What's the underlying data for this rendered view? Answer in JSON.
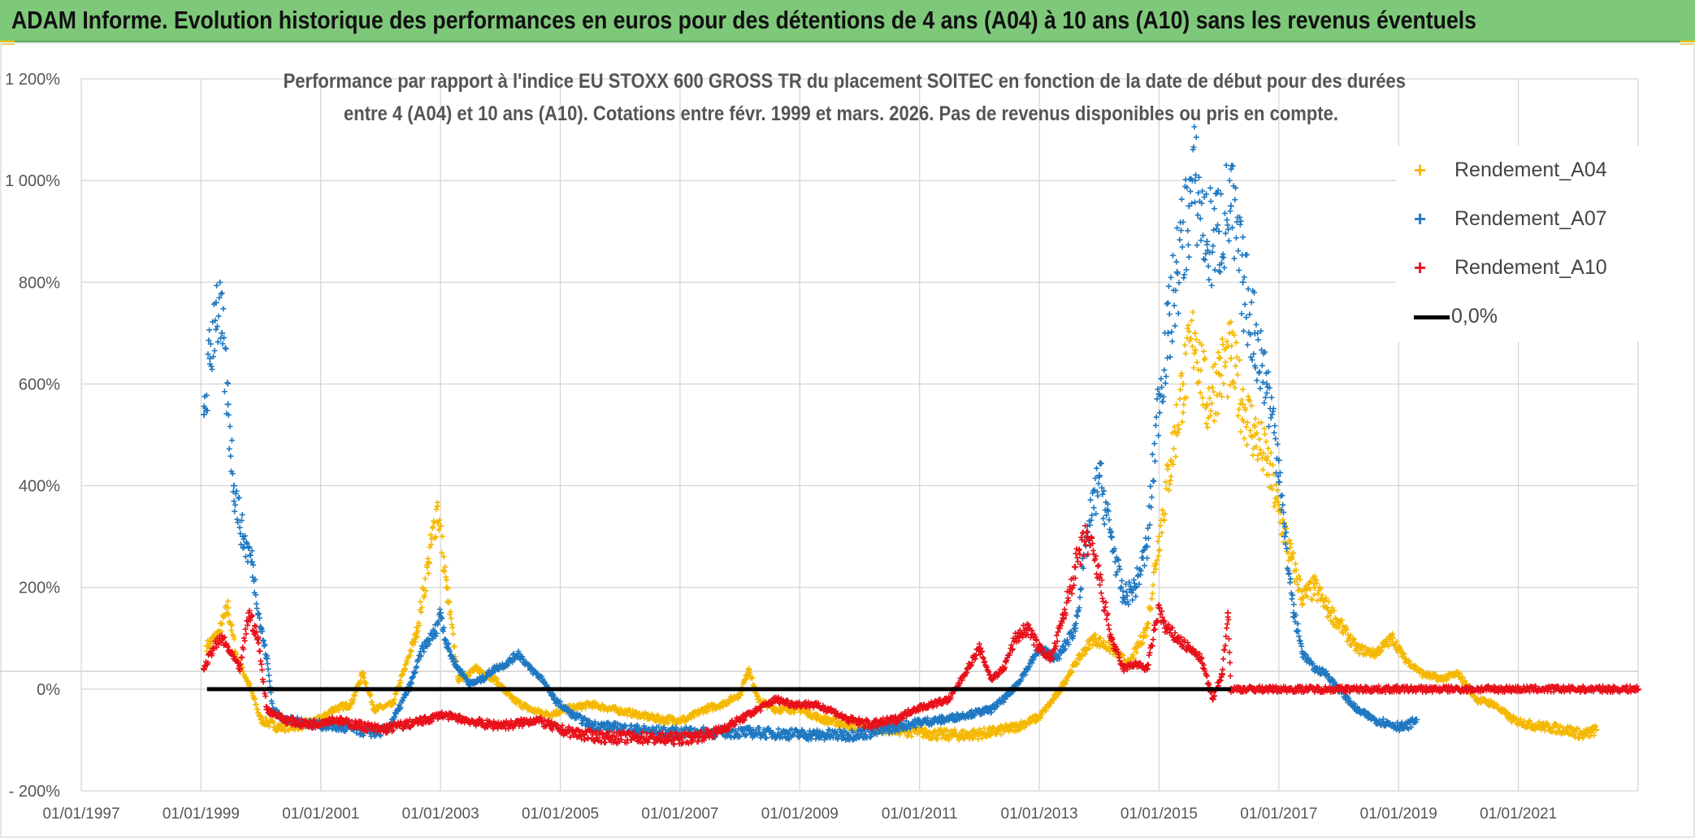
{
  "banner": {
    "title": "ADAM Informe. Evolution historique des performances en euros pour des détentions de 4 ans (A04) à 10 ans (A10) sans les revenus éventuels",
    "bg_color": "#7ec87a"
  },
  "chart_data": {
    "type": "scatter",
    "title_line1": "Performance par rapport à l'indice EU STOXX 600 GROSS TR  du placement SOITEC en fonction de la date de début pour des durées",
    "title_line2": "entre 4 (A04) et 10 ans (A10). Cotations entre févr. 1999 et mars. 2026. Pas de revenus disponibles ou pris en compte.",
    "xlabel": "",
    "ylabel": "",
    "x_ticks": [
      "01/01/1997",
      "01/01/1999",
      "01/01/2001",
      "01/01/2003",
      "01/01/2005",
      "01/01/2007",
      "01/01/2009",
      "01/01/2011",
      "01/01/2013",
      "01/01/2015",
      "01/01/2017",
      "01/01/2019",
      "01/01/2021"
    ],
    "y_ticks": [
      "- 200%",
      "0%",
      "200%",
      "400%",
      "600%",
      "800%",
      "1 000%",
      "1 200%"
    ],
    "ylim": [
      -200,
      1200
    ],
    "xlim": [
      1997.0,
      2023.0
    ],
    "grid": true,
    "legend_position": "top-right",
    "series": [
      {
        "name": "Rendement_A04",
        "color": "#f5b800",
        "marker": "+",
        "points": [
          [
            1999.1,
            85
          ],
          [
            1999.3,
            110
          ],
          [
            1999.45,
            160
          ],
          [
            1999.6,
            60
          ],
          [
            1999.8,
            10
          ],
          [
            2000.0,
            -60
          ],
          [
            2000.3,
            -75
          ],
          [
            2000.7,
            -70
          ],
          [
            2001.0,
            -60
          ],
          [
            2001.2,
            -40
          ],
          [
            2001.5,
            -30
          ],
          [
            2001.7,
            30
          ],
          [
            2001.9,
            -40
          ],
          [
            2002.2,
            -30
          ],
          [
            2002.4,
            40
          ],
          [
            2002.6,
            110
          ],
          [
            2002.8,
            250
          ],
          [
            2002.95,
            360
          ],
          [
            2003.1,
            200
          ],
          [
            2003.3,
            20
          ],
          [
            2003.6,
            40
          ],
          [
            2003.9,
            20
          ],
          [
            2004.2,
            -20
          ],
          [
            2004.5,
            -40
          ],
          [
            2004.8,
            -50
          ],
          [
            2005.1,
            -40
          ],
          [
            2005.5,
            -30
          ],
          [
            2005.9,
            -40
          ],
          [
            2006.3,
            -50
          ],
          [
            2006.7,
            -60
          ],
          [
            2007.1,
            -60
          ],
          [
            2007.4,
            -40
          ],
          [
            2007.7,
            -30
          ],
          [
            2008.0,
            -10
          ],
          [
            2008.15,
            40
          ],
          [
            2008.3,
            -20
          ],
          [
            2008.6,
            -40
          ],
          [
            2009.0,
            -40
          ],
          [
            2009.4,
            -60
          ],
          [
            2009.8,
            -70
          ],
          [
            2010.2,
            -75
          ],
          [
            2010.6,
            -80
          ],
          [
            2011.0,
            -85
          ],
          [
            2011.4,
            -90
          ],
          [
            2011.8,
            -90
          ],
          [
            2012.2,
            -85
          ],
          [
            2012.6,
            -75
          ],
          [
            2013.0,
            -55
          ],
          [
            2013.3,
            -10
          ],
          [
            2013.6,
            50
          ],
          [
            2013.9,
            100
          ],
          [
            2014.2,
            80
          ],
          [
            2014.5,
            50
          ],
          [
            2014.8,
            120
          ],
          [
            2015.0,
            300
          ],
          [
            2015.2,
            450
          ],
          [
            2015.4,
            600
          ],
          [
            2015.6,
            700
          ],
          [
            2015.8,
            560
          ],
          [
            2016.0,
            620
          ],
          [
            2016.2,
            650
          ],
          [
            2016.4,
            560
          ],
          [
            2016.6,
            500
          ],
          [
            2016.8,
            450
          ],
          [
            2017.0,
            350
          ],
          [
            2017.2,
            260
          ],
          [
            2017.4,
            180
          ],
          [
            2017.6,
            200
          ],
          [
            2017.8,
            160
          ],
          [
            2018.0,
            130
          ],
          [
            2018.3,
            80
          ],
          [
            2018.6,
            70
          ],
          [
            2018.9,
            100
          ],
          [
            2019.1,
            60
          ],
          [
            2019.4,
            30
          ],
          [
            2019.7,
            20
          ],
          [
            2020.0,
            30
          ],
          [
            2020.3,
            -20
          ],
          [
            2020.6,
            -30
          ],
          [
            2020.9,
            -60
          ],
          [
            2021.2,
            -70
          ],
          [
            2021.5,
            -75
          ],
          [
            2021.8,
            -80
          ],
          [
            2022.1,
            -90
          ],
          [
            2022.3,
            -80
          ]
        ]
      },
      {
        "name": "Rendement_A07",
        "color": "#1f78c1",
        "marker": "+",
        "points": [
          [
            1999.05,
            540
          ],
          [
            1999.15,
            650
          ],
          [
            1999.25,
            760
          ],
          [
            1999.35,
            700
          ],
          [
            1999.45,
            560
          ],
          [
            1999.55,
            400
          ],
          [
            1999.7,
            300
          ],
          [
            1999.85,
            250
          ],
          [
            2000.0,
            120
          ],
          [
            2000.1,
            60
          ],
          [
            2000.2,
            -40
          ],
          [
            2000.4,
            -60
          ],
          [
            2000.7,
            -65
          ],
          [
            2001.0,
            -70
          ],
          [
            2001.3,
            -75
          ],
          [
            2001.6,
            -80
          ],
          [
            2001.9,
            -85
          ],
          [
            2002.1,
            -80
          ],
          [
            2002.3,
            -40
          ],
          [
            2002.5,
            10
          ],
          [
            2002.7,
            80
          ],
          [
            2002.9,
            110
          ],
          [
            2003.0,
            150
          ],
          [
            2003.1,
            90
          ],
          [
            2003.2,
            60
          ],
          [
            2003.3,
            40
          ],
          [
            2003.5,
            10
          ],
          [
            2003.7,
            20
          ],
          [
            2003.9,
            40
          ],
          [
            2004.1,
            50
          ],
          [
            2004.3,
            70
          ],
          [
            2004.5,
            40
          ],
          [
            2004.7,
            20
          ],
          [
            2004.9,
            -20
          ],
          [
            2005.2,
            -50
          ],
          [
            2005.5,
            -70
          ],
          [
            2005.9,
            -75
          ],
          [
            2006.3,
            -80
          ],
          [
            2006.8,
            -85
          ],
          [
            2007.3,
            -85
          ],
          [
            2007.8,
            -85
          ],
          [
            2008.2,
            -85
          ],
          [
            2008.8,
            -88
          ],
          [
            2009.3,
            -90
          ],
          [
            2009.8,
            -90
          ],
          [
            2010.2,
            -85
          ],
          [
            2010.6,
            -75
          ],
          [
            2011.0,
            -65
          ],
          [
            2011.4,
            -60
          ],
          [
            2011.8,
            -50
          ],
          [
            2012.2,
            -40
          ],
          [
            2012.5,
            -10
          ],
          [
            2012.8,
            40
          ],
          [
            2013.0,
            80
          ],
          [
            2013.3,
            60
          ],
          [
            2013.6,
            120
          ],
          [
            2013.8,
            300
          ],
          [
            2014.0,
            420
          ],
          [
            2014.2,
            300
          ],
          [
            2014.4,
            180
          ],
          [
            2014.6,
            200
          ],
          [
            2014.8,
            280
          ],
          [
            2015.0,
            580
          ],
          [
            2015.15,
            700
          ],
          [
            2015.3,
            820
          ],
          [
            2015.5,
            950
          ],
          [
            2015.6,
            1000
          ],
          [
            2015.8,
            880
          ],
          [
            2016.0,
            900
          ],
          [
            2016.2,
            950
          ],
          [
            2016.4,
            800
          ],
          [
            2016.6,
            700
          ],
          [
            2016.8,
            600
          ],
          [
            2017.0,
            450
          ],
          [
            2017.1,
            300
          ],
          [
            2017.25,
            150
          ],
          [
            2017.4,
            70
          ],
          [
            2017.6,
            40
          ],
          [
            2017.8,
            30
          ],
          [
            2018.0,
            0
          ],
          [
            2018.3,
            -40
          ],
          [
            2018.6,
            -60
          ],
          [
            2018.9,
            -70
          ],
          [
            2019.1,
            -75
          ],
          [
            2019.3,
            -60
          ]
        ]
      },
      {
        "name": "Rendement_A10",
        "color": "#e8101a",
        "marker": "+",
        "points": [
          [
            1999.05,
            40
          ],
          [
            1999.2,
            80
          ],
          [
            1999.35,
            100
          ],
          [
            1999.5,
            70
          ],
          [
            1999.65,
            40
          ],
          [
            1999.8,
            150
          ],
          [
            1999.95,
            100
          ],
          [
            2000.1,
            -40
          ],
          [
            2000.4,
            -60
          ],
          [
            2000.8,
            -70
          ],
          [
            2001.2,
            -60
          ],
          [
            2001.6,
            -70
          ],
          [
            2002.0,
            -80
          ],
          [
            2002.4,
            -70
          ],
          [
            2002.8,
            -60
          ],
          [
            2003.0,
            -50
          ],
          [
            2003.4,
            -60
          ],
          [
            2003.8,
            -70
          ],
          [
            2004.2,
            -70
          ],
          [
            2004.6,
            -60
          ],
          [
            2005.0,
            -80
          ],
          [
            2005.4,
            -90
          ],
          [
            2005.8,
            -95
          ],
          [
            2006.3,
            -95
          ],
          [
            2006.8,
            -98
          ],
          [
            2007.2,
            -95
          ],
          [
            2007.6,
            -85
          ],
          [
            2008.0,
            -60
          ],
          [
            2008.3,
            -40
          ],
          [
            2008.6,
            -20
          ],
          [
            2008.9,
            -30
          ],
          [
            2009.2,
            -30
          ],
          [
            2009.5,
            -40
          ],
          [
            2009.8,
            -60
          ],
          [
            2010.2,
            -70
          ],
          [
            2010.6,
            -60
          ],
          [
            2010.9,
            -40
          ],
          [
            2011.2,
            -30
          ],
          [
            2011.5,
            -20
          ],
          [
            2011.8,
            40
          ],
          [
            2012.0,
            80
          ],
          [
            2012.2,
            20
          ],
          [
            2012.4,
            40
          ],
          [
            2012.6,
            100
          ],
          [
            2012.8,
            120
          ],
          [
            2013.0,
            80
          ],
          [
            2013.2,
            60
          ],
          [
            2013.4,
            140
          ],
          [
            2013.6,
            240
          ],
          [
            2013.8,
            300
          ],
          [
            2014.0,
            220
          ],
          [
            2014.2,
            100
          ],
          [
            2014.4,
            40
          ],
          [
            2014.6,
            50
          ],
          [
            2014.8,
            40
          ],
          [
            2015.0,
            160
          ],
          [
            2015.1,
            120
          ],
          [
            2015.3,
            100
          ],
          [
            2015.5,
            80
          ],
          [
            2015.7,
            60
          ],
          [
            2015.9,
            -20
          ],
          [
            2016.05,
            30
          ],
          [
            2016.15,
            150
          ],
          [
            2016.2,
            0
          ],
          [
            2016.6,
            0
          ],
          [
            2017.0,
            0
          ],
          [
            2017.5,
            0
          ],
          [
            2018.0,
            0
          ],
          [
            2018.5,
            0
          ],
          [
            2019.0,
            0
          ],
          [
            2019.5,
            0
          ],
          [
            2020.0,
            0
          ],
          [
            2020.5,
            0
          ],
          [
            2021.0,
            0
          ],
          [
            2021.5,
            0
          ],
          [
            2022.0,
            0
          ],
          [
            2022.5,
            0
          ],
          [
            2023.0,
            0
          ]
        ]
      },
      {
        "name": "0,0%",
        "color": "#000000",
        "marker": "line",
        "points": [
          [
            1999.1,
            0
          ],
          [
            2016.2,
            0
          ]
        ]
      }
    ]
  }
}
